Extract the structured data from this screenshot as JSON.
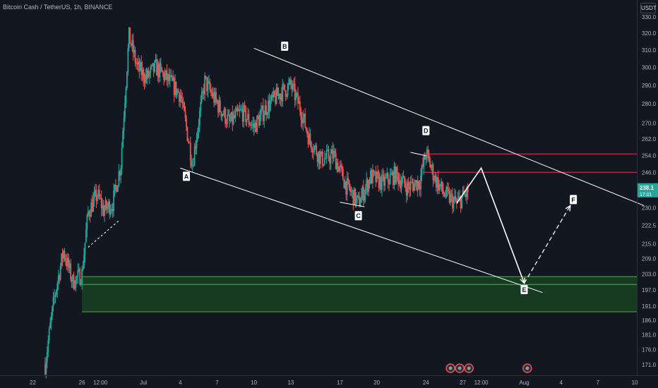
{
  "header": {
    "title": "Bitcoin Cash / TetherUS, 1h, BINANCE",
    "currency": "USDT"
  },
  "colors": {
    "background": "#131722",
    "up": "#26a69a",
    "down": "#ef5350",
    "line": "#ffffff",
    "red_level": "#f23645",
    "zone_fill": "#1b5e20",
    "zone_border": "#4caf50"
  },
  "chart_data": {
    "type": "candlestick",
    "title": "Bitcoin Cash / TetherUS, 1h, BINANCE",
    "price_axis": {
      "scale": "log",
      "ticks": [
        "330.0",
        "320.0",
        "310.0",
        "300.0",
        "290.0",
        "280.0",
        "270.0",
        "262.0",
        "254.0",
        "246.0",
        "238.0",
        "230.0",
        "222.5",
        "215.0",
        "209.0",
        "203.0",
        "197.0",
        "191.0",
        "186.0",
        "181.0",
        "176.0",
        "171.0"
      ]
    },
    "time_axis": {
      "ticks": [
        {
          "label": "22",
          "x": "2023-06-22"
        },
        {
          "label": "26",
          "x": "2023-06-26"
        },
        {
          "label": "12:00",
          "x": "2023-06-27T12:00"
        },
        {
          "label": "Jul",
          "x": "2023-07-01"
        },
        {
          "label": "4",
          "x": "2023-07-04"
        },
        {
          "label": "7",
          "x": "2023-07-07"
        },
        {
          "label": "10",
          "x": "2023-07-10"
        },
        {
          "label": "13",
          "x": "2023-07-13"
        },
        {
          "label": "17",
          "x": "2023-07-17"
        },
        {
          "label": "20",
          "x": "2023-07-20"
        },
        {
          "label": "24",
          "x": "2023-07-24"
        },
        {
          "label": "27",
          "x": "2023-07-27"
        },
        {
          "label": "12:00",
          "x": "2023-07-28T12:00"
        },
        {
          "label": "Aug",
          "x": "2023-08-01"
        },
        {
          "label": "4",
          "x": "2023-08-04"
        },
        {
          "label": "7",
          "x": "2023-08-07"
        },
        {
          "label": "10",
          "x": "2023-08-10"
        }
      ]
    },
    "last_price": {
      "value": "238.1",
      "countdown": "17:01"
    },
    "path_points": [
      {
        "x": "2023-06-23T00:00",
        "y": 171.0
      },
      {
        "x": "2023-06-23T18:00",
        "y": 194.0
      },
      {
        "x": "2023-06-24T12:00",
        "y": 212.0
      },
      {
        "x": "2023-06-25T06:00",
        "y": 200.0
      },
      {
        "x": "2023-06-26T00:00",
        "y": 203.0
      },
      {
        "x": "2023-06-26T12:00",
        "y": 228.0
      },
      {
        "x": "2023-06-27T06:00",
        "y": 236.0
      },
      {
        "x": "2023-06-27T18:00",
        "y": 229.0
      },
      {
        "x": "2023-06-28T12:00",
        "y": 232.0
      },
      {
        "x": "2023-06-29T04:00",
        "y": 250.0
      },
      {
        "x": "2023-06-29T20:00",
        "y": 318.0
      },
      {
        "x": "2023-06-30T12:00",
        "y": 300.0
      },
      {
        "x": "2023-07-01T06:00",
        "y": 294.0
      },
      {
        "x": "2023-07-02T00:00",
        "y": 300.0
      },
      {
        "x": "2023-07-03T00:00",
        "y": 293.0
      },
      {
        "x": "2023-07-04T00:00",
        "y": 285.0
      },
      {
        "x": "2023-07-05T00:00",
        "y": 250.0
      },
      {
        "x": "2023-07-06T00:00",
        "y": 292.0
      },
      {
        "x": "2023-07-07T00:00",
        "y": 280.0
      },
      {
        "x": "2023-07-08T00:00",
        "y": 270.0
      },
      {
        "x": "2023-07-09T00:00",
        "y": 276.0
      },
      {
        "x": "2023-07-10T00:00",
        "y": 268.0
      },
      {
        "x": "2023-07-11T00:00",
        "y": 278.0
      },
      {
        "x": "2023-07-12T00:00",
        "y": 285.0
      },
      {
        "x": "2023-07-13T00:00",
        "y": 290.0
      },
      {
        "x": "2023-07-13T18:00",
        "y": 278.0
      },
      {
        "x": "2023-07-14T12:00",
        "y": 262.0
      },
      {
        "x": "2023-07-15T12:00",
        "y": 252.0
      },
      {
        "x": "2023-07-16T12:00",
        "y": 254.0
      },
      {
        "x": "2023-07-17T12:00",
        "y": 240.0
      },
      {
        "x": "2023-07-18T12:00",
        "y": 232.0
      },
      {
        "x": "2023-07-19T12:00",
        "y": 244.0
      },
      {
        "x": "2023-07-20T12:00",
        "y": 241.0
      },
      {
        "x": "2023-07-21T12:00",
        "y": 245.0
      },
      {
        "x": "2023-07-22T12:00",
        "y": 239.0
      },
      {
        "x": "2023-07-23T12:00",
        "y": 242.0
      },
      {
        "x": "2023-07-24T00:00",
        "y": 255.0
      },
      {
        "x": "2023-07-24T18:00",
        "y": 243.0
      },
      {
        "x": "2023-07-25T12:00",
        "y": 236.0
      },
      {
        "x": "2023-07-26T12:00",
        "y": 232.0
      },
      {
        "x": "2023-07-27T06:00",
        "y": 236.0
      },
      {
        "x": "2023-07-27T12:00",
        "y": 238.1
      }
    ],
    "annotations": {
      "points": [
        {
          "label": "A",
          "x": "2023-07-04T12:00",
          "y": 244.0
        },
        {
          "label": "B",
          "x": "2023-07-12T12:00",
          "y": 312.0
        },
        {
          "label": "C",
          "x": "2023-07-18T12:00",
          "y": 226.5
        },
        {
          "label": "D",
          "x": "2023-07-24T00:00",
          "y": 266.0
        },
        {
          "label": "E",
          "x": "2023-08-01T00:00",
          "y": 197.0
        },
        {
          "label": "F",
          "x": "2023-08-05T00:00",
          "y": 233.5
        }
      ],
      "red_levels": [
        {
          "y": 254.7,
          "x_from": "2023-07-23T18:00"
        },
        {
          "y": 246.0,
          "x_from": "2023-07-23T18:00"
        }
      ],
      "demand_zone": {
        "y_top": 202.0,
        "y_mid": 199.0,
        "y_bottom": 189.0,
        "x_from": "2023-06-26T00:00"
      },
      "upper_channel_line": [
        {
          "x": "2023-07-10T00:00",
          "y": 311.0
        },
        {
          "x": "2023-08-10T18:00",
          "y": 231.0
        }
      ],
      "lower_channel_line": [
        {
          "x": "2023-07-04T00:00",
          "y": 248.0
        },
        {
          "x": "2023-08-02T12:00",
          "y": 196.0
        }
      ],
      "small_line_C": [
        {
          "x": "2023-07-17T00:00",
          "y": 232.5
        },
        {
          "x": "2023-07-19T00:00",
          "y": 230.5
        }
      ],
      "small_line_D": [
        {
          "x": "2023-07-22T18:00",
          "y": 255.5
        },
        {
          "x": "2023-07-24T00:00",
          "y": 253.8
        }
      ],
      "projection": [
        {
          "x": "2023-07-26T12:00",
          "y": 232.0
        },
        {
          "x": "2023-07-28T12:00",
          "y": 248.0
        },
        {
          "x": "2023-08-01T00:00",
          "y": 199.5
        }
      ],
      "projection_dashed": [
        {
          "x": "2023-08-01T00:00",
          "y": 199.5
        },
        {
          "x": "2023-08-04T18:00",
          "y": 231.0
        }
      ],
      "support_dashed": [
        {
          "x": "2023-06-26T12:00",
          "y": 213.5
        },
        {
          "x": "2023-06-29T00:00",
          "y": 224.5
        }
      ]
    },
    "event_markers": [
      {
        "x": "2023-07-26T00:00"
      },
      {
        "x": "2023-07-26T18:00"
      },
      {
        "x": "2023-07-27T12:00"
      },
      {
        "x": "2023-08-01T06:00"
      }
    ]
  }
}
